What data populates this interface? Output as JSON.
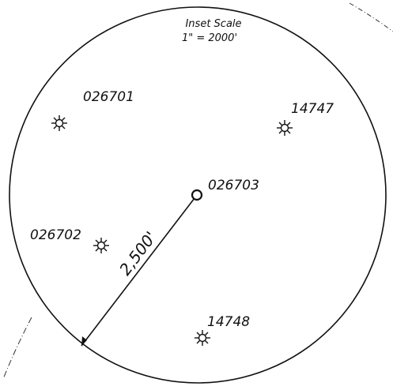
{
  "inset": {
    "title": "Inset Scale",
    "scale": "1\" = 2000'"
  },
  "radius_label": "2,500'",
  "center_well": {
    "label": "026703"
  },
  "wells": [
    {
      "label": "026701"
    },
    {
      "label": "14747"
    },
    {
      "label": "026702"
    },
    {
      "label": "14748"
    }
  ]
}
